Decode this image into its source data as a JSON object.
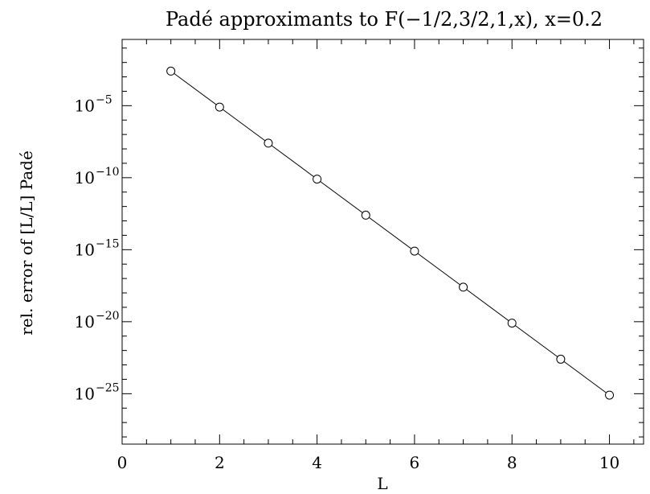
{
  "chart_data": {
    "type": "line",
    "title": "Padé approximants to F(−1/2,3/2,1,x), x=0.2",
    "xlabel": "L",
    "ylabel": "rel. error of [L/L] Padé",
    "y_scale": "log",
    "xlim": [
      0,
      10.7
    ],
    "ylim_log10": [
      -28.5,
      -0.4
    ],
    "x_ticks": [
      0,
      2,
      4,
      6,
      8,
      10
    ],
    "y_ticks_log10": [
      -5,
      -10,
      -15,
      -20,
      -25
    ],
    "y_tick_base": "10",
    "marker": "open-circle",
    "grid": false,
    "series": [
      {
        "x": [
          1,
          2,
          3,
          4,
          5,
          6,
          7,
          8,
          9,
          10
        ],
        "y": [
          0.0025,
          8e-06,
          2.5e-08,
          8e-11,
          2.5e-13,
          8e-16,
          2.5e-18,
          8e-21,
          2.5e-23,
          8e-26
        ]
      }
    ]
  }
}
